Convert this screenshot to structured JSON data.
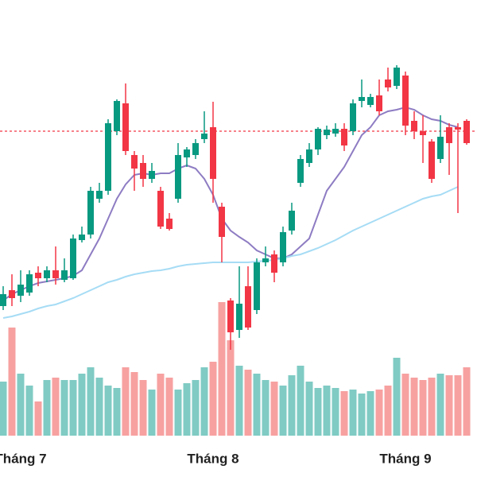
{
  "chart_data": {
    "type": "candlestick",
    "categories": [
      null,
      null,
      "Tháng 7",
      null,
      null,
      null,
      null,
      null,
      null,
      null,
      null,
      null,
      null,
      null,
      null,
      null,
      null,
      null,
      null,
      null,
      null,
      null,
      null,
      null,
      "Tháng 8",
      null,
      null,
      null,
      null,
      null,
      null,
      null,
      null,
      null,
      null,
      null,
      null,
      null,
      null,
      null,
      null,
      null,
      null,
      null,
      null,
      null,
      "Tháng 9",
      null,
      null,
      null,
      null,
      null,
      null,
      null
    ],
    "open": [
      115,
      135,
      128,
      132,
      157,
      150,
      160,
      148,
      150,
      198,
      205,
      250,
      260,
      335,
      370,
      305,
      295,
      275,
      260,
      225,
      250,
      302,
      305,
      325,
      340,
      240,
      122,
      85,
      140,
      110,
      170,
      180,
      170,
      210,
      270,
      295,
      312,
      330,
      332,
      338,
      335,
      373,
      368,
      380,
      400,
      392,
      405,
      348,
      335,
      322,
      300,
      340,
      340,
      348
    ],
    "high": [
      140,
      155,
      160,
      160,
      165,
      165,
      190,
      175,
      205,
      215,
      265,
      270,
      350,
      375,
      395,
      310,
      305,
      295,
      265,
      232,
      320,
      315,
      325,
      360,
      372,
      245,
      125,
      165,
      165,
      175,
      190,
      185,
      215,
      245,
      305,
      320,
      340,
      342,
      345,
      345,
      375,
      400,
      382,
      400,
      415,
      418,
      410,
      360,
      355,
      325,
      355,
      345,
      345,
      350
    ],
    "low": [
      110,
      115,
      120,
      128,
      140,
      145,
      142,
      145,
      148,
      195,
      200,
      245,
      255,
      330,
      305,
      260,
      265,
      270,
      212,
      210,
      245,
      290,
      300,
      320,
      245,
      170,
      60,
      75,
      85,
      105,
      165,
      145,
      165,
      205,
      265,
      290,
      305,
      325,
      328,
      310,
      330,
      365,
      365,
      355,
      385,
      388,
      330,
      325,
      295,
      270,
      295,
      280,
      232,
      318
    ],
    "close": [
      130,
      125,
      142,
      155,
      150,
      160,
      150,
      160,
      200,
      205,
      260,
      260,
      345,
      373,
      310,
      288,
      275,
      285,
      215,
      212,
      305,
      312,
      320,
      332,
      275,
      202,
      82,
      118,
      88,
      170,
      175,
      157,
      208,
      235,
      300,
      312,
      338,
      337,
      338,
      317,
      370,
      378,
      378,
      360,
      390,
      415,
      342,
      335,
      330,
      275,
      328,
      320,
      337,
      320
    ],
    "up_color": "#089981",
    "down_color": "#f23645",
    "ylim": [
      -60,
      500
    ],
    "moving_averages": [
      {
        "color": "#8e7cc3",
        "values": [
          122,
          130,
          135,
          140,
          144,
          146,
          148,
          150,
          153,
          160,
          180,
          200,
          225,
          250,
          268,
          280,
          282,
          280,
          282,
          282,
          288,
          292,
          288,
          275,
          255,
          225,
          210,
          202,
          195,
          185,
          180,
          175,
          175,
          180,
          190,
          200,
          230,
          260,
          275,
          290,
          310,
          330,
          340,
          355,
          360,
          362,
          365,
          362,
          355,
          350,
          348,
          343,
          340,
          null
        ]
      },
      {
        "color": "#a6dcf5",
        "values": [
          100,
          102,
          105,
          108,
          112,
          115,
          117,
          121,
          125,
          130,
          135,
          140,
          145,
          148,
          152,
          155,
          157,
          159,
          160,
          162,
          165,
          167,
          168,
          169,
          170,
          170,
          170,
          170,
          170,
          171,
          172,
          173,
          175,
          178,
          180,
          184,
          188,
          193,
          198,
          204,
          210,
          215,
          220,
          225,
          230,
          235,
          240,
          245,
          250,
          253,
          255,
          260,
          265,
          null
        ]
      }
    ],
    "volume": {
      "axis": "y2",
      "up_color": "#80cbc4",
      "down_color": "#f7a1a1",
      "values": [
        68,
        136,
        78,
        63,
        43,
        70,
        73,
        70,
        70,
        78,
        86,
        73,
        63,
        60,
        86,
        80,
        70,
        58,
        78,
        73,
        58,
        66,
        70,
        86,
        93,
        168,
        120,
        88,
        83,
        78,
        70,
        68,
        63,
        76,
        88,
        68,
        60,
        63,
        60,
        56,
        58,
        53,
        56,
        58,
        63,
        98,
        78,
        73,
        70,
        73,
        78,
        76,
        76,
        86
      ]
    },
    "y2lim": [
      0,
      400
    ],
    "price_line": {
      "value": 335,
      "color": "#f23645"
    }
  }
}
